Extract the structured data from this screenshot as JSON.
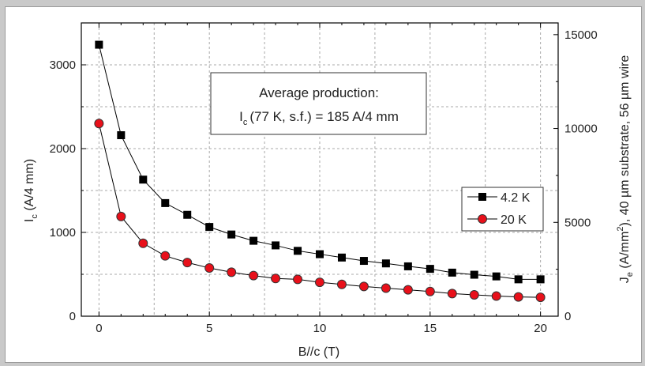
{
  "chart_data": {
    "type": "line",
    "xlabel": "B//c (T)",
    "ylabel": "I_c (A/4 mm)",
    "ylabel_parts": {
      "main": "I",
      "sub": "c",
      "rest": " (A/4 mm)"
    },
    "y2label": "J_e (A/mm^2), 40 µm substrate, 56 µm wire",
    "y2label_parts": {
      "main": "J",
      "sub": "e",
      "a": " (A/mm",
      "sup": "2",
      "b": "), 40 µm substrate, 56 µm wire"
    },
    "xlim": [
      -0.8,
      20.8
    ],
    "ylim": [
      0,
      3500
    ],
    "y2lim": [
      0,
      15625
    ],
    "x_ticks": [
      0,
      5,
      10,
      15,
      20
    ],
    "y_ticks": [
      0,
      1000,
      2000,
      3000
    ],
    "y2_ticks": [
      0,
      5000,
      10000,
      15000
    ],
    "grid": true,
    "legend_position": "right-middle",
    "annotation": {
      "line1": "Average production:",
      "line2_main": "I",
      "line2_sub": "c",
      "line2_rest": "(77 K, s.f.) = 185 A/4 mm"
    },
    "x": [
      0,
      1,
      2,
      3,
      4,
      5,
      6,
      7,
      8,
      9,
      10,
      11,
      12,
      13,
      14,
      15,
      16,
      17,
      18,
      19,
      20
    ],
    "series": [
      {
        "name": "4.2 K",
        "marker": "square",
        "color": "#000000",
        "values": [
          3240,
          2160,
          1630,
          1350,
          1210,
          1065,
          975,
          900,
          845,
          780,
          740,
          700,
          660,
          630,
          595,
          565,
          520,
          495,
          475,
          440,
          440
        ]
      },
      {
        "name": "20 K",
        "marker": "circle",
        "color": "#e8101a",
        "values": [
          2300,
          1190,
          870,
          720,
          640,
          575,
          525,
          485,
          450,
          440,
          405,
          380,
          355,
          335,
          315,
          295,
          270,
          255,
          240,
          230,
          225
        ]
      }
    ]
  }
}
